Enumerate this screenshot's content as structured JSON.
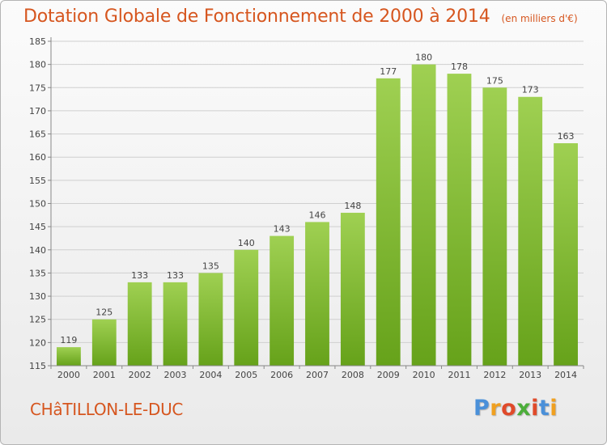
{
  "title": "Dotation Globale de Fonctionnement de 2000 à 2014",
  "unit": "(en milliers d'€)",
  "commune": "CHâTILLON-LE-DUC",
  "logo": {
    "text": "Proxiti",
    "letter_colors": [
      "#4a90d9",
      "#f0a020",
      "#e04a2a",
      "#4cae3a",
      "#e04a2a",
      "#4a90d9",
      "#f0a020"
    ]
  },
  "chart_data": {
    "type": "bar",
    "categories": [
      "2000",
      "2001",
      "2002",
      "2003",
      "2004",
      "2005",
      "2006",
      "2007",
      "2008",
      "2009",
      "2010",
      "2011",
      "2012",
      "2013",
      "2014"
    ],
    "values": [
      119,
      125,
      133,
      133,
      135,
      140,
      143,
      146,
      148,
      177,
      180,
      178,
      175,
      173,
      163
    ],
    "ylim": [
      115,
      185
    ],
    "yticks": [
      115,
      120,
      125,
      130,
      135,
      140,
      145,
      150,
      155,
      160,
      165,
      170,
      175,
      180,
      185
    ],
    "grid": true,
    "bar_color_top": "#9fd052",
    "bar_color_bottom": "#66a21a"
  }
}
